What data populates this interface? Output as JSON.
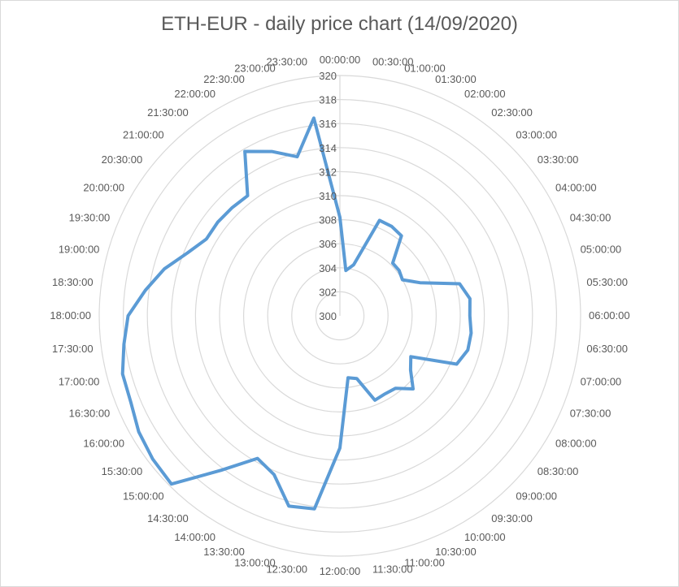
{
  "chart_data": {
    "type": "radar",
    "title": "ETH-EUR - daily price chart (14/09/2020)",
    "grid": true,
    "rlim": [
      300,
      320
    ],
    "r_ticks": [
      300,
      302,
      304,
      306,
      308,
      310,
      312,
      314,
      316,
      318,
      320
    ],
    "categories": [
      "00:00:00",
      "00:30:00",
      "01:00:00",
      "01:30:00",
      "02:00:00",
      "02:30:00",
      "03:00:00",
      "03:30:00",
      "04:00:00",
      "04:30:00",
      "05:00:00",
      "05:30:00",
      "06:00:00",
      "06:30:00",
      "07:00:00",
      "07:30:00",
      "08:00:00",
      "08:30:00",
      "09:00:00",
      "09:30:00",
      "10:00:00",
      "10:30:00",
      "11:00:00",
      "11:30:00",
      "12:00:00",
      "12:30:00",
      "13:00:00",
      "13:30:00",
      "14:00:00",
      "14:30:00",
      "15:00:00",
      "15:30:00",
      "16:00:00",
      "16:30:00",
      "17:00:00",
      "17:30:00",
      "18:00:00",
      "18:30:00",
      "19:00:00",
      "19:30:00",
      "20:00:00",
      "20:30:00",
      "21:00:00",
      "21:30:00",
      "22:00:00",
      "22:30:00",
      "23:00:00",
      "23:30:00"
    ],
    "series": [
      {
        "color": "#5b9bd5",
        "values": [
          308.2,
          303.8,
          304.4,
          308.6,
          308.6,
          308.4,
          306.2,
          306.2,
          306.0,
          307.2,
          310.3,
          310.9,
          310.8,
          311.0,
          311.0,
          310.5,
          306.8,
          307.4,
          308.6,
          307.6,
          307.5,
          307.6,
          305.4,
          305.2,
          311.0,
          316.2,
          316.4,
          314.3,
          313.7,
          316.2,
          319.8,
          319.6,
          319.3,
          318.8,
          318.7,
          318.1,
          317.6,
          316.3,
          315.1,
          313.7,
          312.8,
          312.8,
          312.7,
          312.6,
          315.8,
          314.8,
          313.7,
          316.6
        ]
      }
    ]
  }
}
